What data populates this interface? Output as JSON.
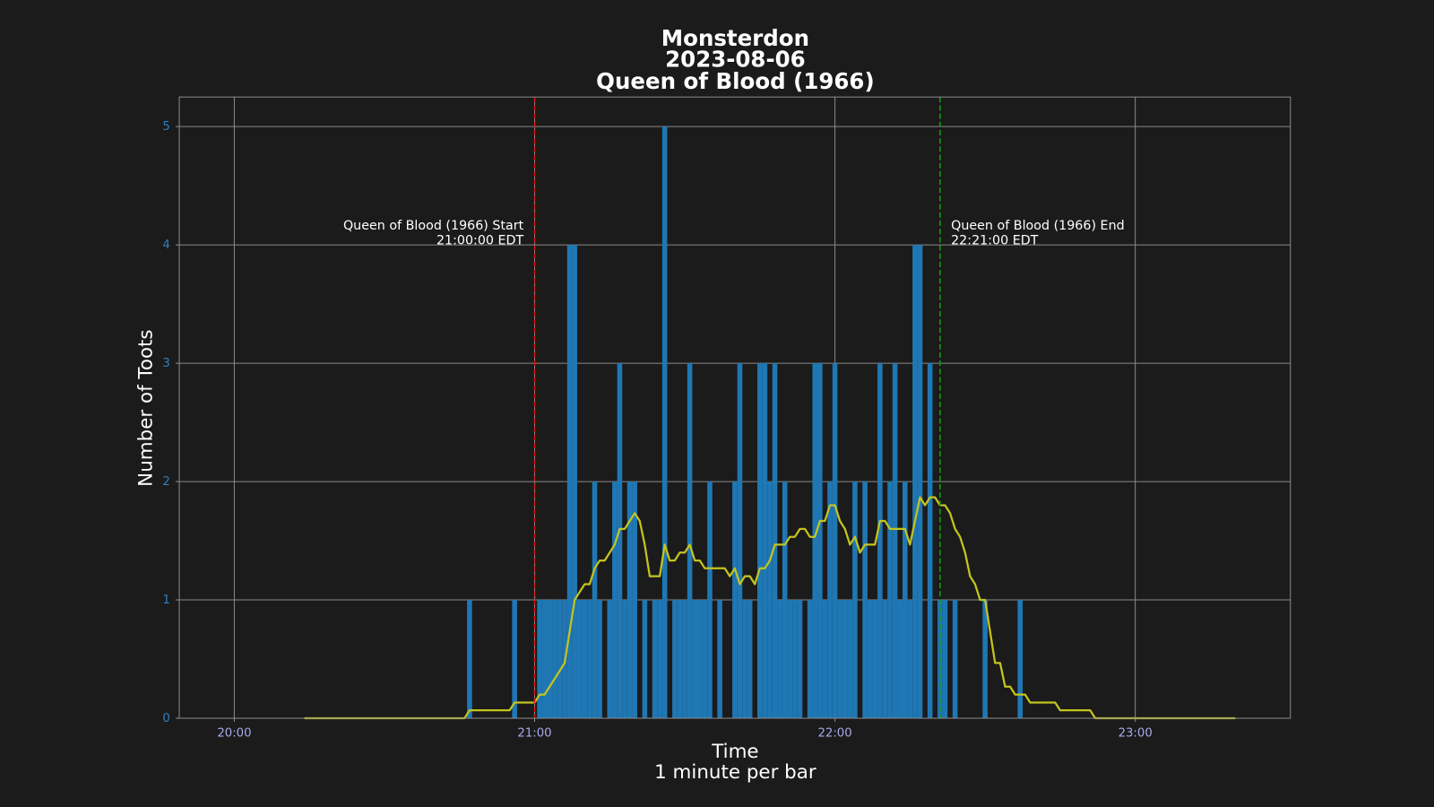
{
  "chart_data": {
    "type": "bar",
    "title": [
      "Monsterdon",
      "2023-08-06",
      "Queen of Blood (1966)"
    ],
    "xlabel": [
      "Time",
      "1 minute per bar"
    ],
    "ylabel": "Number of Toots",
    "background": "#1b1b1b",
    "grid": true,
    "grid_color": "#8a8a8a",
    "ytick_color": "#2f7fc0",
    "xtick_color": "#a8a8e8",
    "xlim": [
      "19:49",
      "23:31"
    ],
    "xticks": [
      "20:00",
      "21:00",
      "22:00",
      "23:00"
    ],
    "ylim": [
      0,
      5.25
    ],
    "yticks": [
      0,
      1,
      2,
      3,
      4,
      5
    ],
    "x": [
      "20:14",
      "20:15",
      "20:16",
      "20:17",
      "20:18",
      "20:19",
      "20:20",
      "20:21",
      "20:22",
      "20:23",
      "20:24",
      "20:25",
      "20:26",
      "20:27",
      "20:28",
      "20:29",
      "20:30",
      "20:31",
      "20:32",
      "20:33",
      "20:34",
      "20:35",
      "20:36",
      "20:37",
      "20:38",
      "20:39",
      "20:40",
      "20:41",
      "20:42",
      "20:43",
      "20:44",
      "20:45",
      "20:46",
      "20:47",
      "20:48",
      "20:49",
      "20:50",
      "20:51",
      "20:52",
      "20:53",
      "20:54",
      "20:55",
      "20:56",
      "20:57",
      "20:58",
      "20:59",
      "21:00",
      "21:01",
      "21:02",
      "21:03",
      "21:04",
      "21:05",
      "21:06",
      "21:07",
      "21:08",
      "21:09",
      "21:10",
      "21:11",
      "21:12",
      "21:13",
      "21:14",
      "21:15",
      "21:16",
      "21:17",
      "21:18",
      "21:19",
      "21:20",
      "21:21",
      "21:22",
      "21:23",
      "21:24",
      "21:25",
      "21:26",
      "21:27",
      "21:28",
      "21:29",
      "21:30",
      "21:31",
      "21:32",
      "21:33",
      "21:34",
      "21:35",
      "21:36",
      "21:37",
      "21:38",
      "21:39",
      "21:40",
      "21:41",
      "21:42",
      "21:43",
      "21:44",
      "21:45",
      "21:46",
      "21:47",
      "21:48",
      "21:49",
      "21:50",
      "21:51",
      "21:52",
      "21:53",
      "21:54",
      "21:55",
      "21:56",
      "21:57",
      "21:58",
      "21:59",
      "22:00",
      "22:01",
      "22:02",
      "22:03",
      "22:04",
      "22:05",
      "22:06",
      "22:07",
      "22:08",
      "22:09",
      "22:10",
      "22:11",
      "22:12",
      "22:13",
      "22:14",
      "22:15",
      "22:16",
      "22:17",
      "22:18",
      "22:19",
      "22:20",
      "22:21",
      "22:22",
      "22:23",
      "22:24",
      "22:25",
      "22:26",
      "22:27",
      "22:28",
      "22:29",
      "22:30",
      "22:31",
      "22:32",
      "22:33",
      "22:34",
      "22:35",
      "22:36",
      "22:37",
      "22:38",
      "22:39",
      "22:40",
      "22:41",
      "22:42",
      "22:43",
      "22:44",
      "22:45",
      "22:46",
      "22:47",
      "22:48",
      "22:49",
      "22:50",
      "22:51",
      "22:52",
      "22:53",
      "22:54",
      "22:55",
      "22:56",
      "22:57",
      "22:58",
      "22:59",
      "23:00",
      "23:01",
      "23:02",
      "23:03",
      "23:04",
      "23:05",
      "23:06",
      "23:07",
      "23:08",
      "23:09",
      "23:10",
      "23:11",
      "23:12",
      "23:13",
      "23:14",
      "23:15",
      "23:16",
      "23:17",
      "23:18",
      "23:19",
      "23:20"
    ],
    "series": [
      {
        "type": "bar",
        "color": "#1f77b4",
        "values": [
          0,
          0,
          0,
          0,
          0,
          0,
          0,
          0,
          0,
          0,
          0,
          0,
          0,
          0,
          0,
          0,
          0,
          0,
          0,
          0,
          0,
          0,
          0,
          0,
          0,
          0,
          0,
          0,
          0,
          0,
          0,
          0,
          0,
          1,
          0,
          0,
          0,
          0,
          0,
          0,
          0,
          0,
          1,
          0,
          0,
          0,
          0,
          1,
          1,
          1,
          1,
          1,
          1,
          4,
          4,
          1,
          1,
          1,
          2,
          1,
          0,
          1,
          2,
          3,
          1,
          2,
          2,
          0,
          1,
          0,
          1,
          1,
          5,
          0,
          1,
          1,
          1,
          3,
          1,
          1,
          1,
          2,
          0,
          1,
          0,
          0,
          2,
          3,
          1,
          1,
          0,
          3,
          3,
          2,
          3,
          1,
          2,
          1,
          1,
          1,
          0,
          1,
          3,
          3,
          1,
          2,
          3,
          1,
          1,
          1,
          2,
          0,
          2,
          1,
          1,
          3,
          1,
          2,
          3,
          1,
          2,
          1,
          4,
          4,
          0,
          3,
          0,
          1,
          1,
          0,
          1,
          0,
          0,
          0,
          0,
          0,
          1,
          0,
          0,
          0,
          0,
          0,
          0,
          1,
          0,
          0,
          0,
          0,
          0,
          0,
          0,
          0,
          0,
          0,
          0,
          0,
          0,
          0,
          0,
          0,
          0,
          0,
          0,
          0,
          0,
          0,
          0,
          0,
          0,
          0,
          0,
          0,
          0,
          0,
          0,
          0,
          0,
          0,
          0,
          0,
          0,
          0,
          0,
          0,
          0,
          0,
          0
        ]
      },
      {
        "type": "line",
        "color": "#c4c41e",
        "values": [
          0,
          0,
          0,
          0,
          0,
          0,
          0,
          0,
          0,
          0,
          0,
          0,
          0,
          0,
          0,
          0,
          0,
          0,
          0,
          0,
          0,
          0,
          0,
          0,
          0,
          0,
          0,
          0,
          0,
          0,
          0,
          0,
          0,
          0.067,
          0.067,
          0.067,
          0.067,
          0.067,
          0.067,
          0.067,
          0.067,
          0.067,
          0.133,
          0.133,
          0.133,
          0.133,
          0.133,
          0.2,
          0.2,
          0.267,
          0.333,
          0.4,
          0.467,
          0.733,
          1,
          1.067,
          1.133,
          1.133,
          1.267,
          1.333,
          1.333,
          1.4,
          1.467,
          1.6,
          1.6,
          1.667,
          1.733,
          1.667,
          1.467,
          1.2,
          1.2,
          1.2,
          1.467,
          1.333,
          1.333,
          1.4,
          1.4,
          1.467,
          1.333,
          1.333,
          1.267,
          1.267,
          1.267,
          1.267,
          1.267,
          1.2,
          1.267,
          1.133,
          1.2,
          1.2,
          1.133,
          1.267,
          1.267,
          1.333,
          1.467,
          1.467,
          1.467,
          1.533,
          1.533,
          1.6,
          1.6,
          1.533,
          1.533,
          1.667,
          1.667,
          1.8,
          1.8,
          1.667,
          1.6,
          1.467,
          1.533,
          1.4,
          1.467,
          1.467,
          1.467,
          1.667,
          1.667,
          1.6,
          1.6,
          1.6,
          1.6,
          1.467,
          1.667,
          1.867,
          1.8,
          1.867,
          1.867,
          1.8,
          1.8,
          1.733,
          1.6,
          1.533,
          1.4,
          1.2,
          1.133,
          1,
          1,
          0.733,
          0.467,
          0.467,
          0.267,
          0.267,
          0.2,
          0.2,
          0.2,
          0.133,
          0.133,
          0.133,
          0.133,
          0.133,
          0.133,
          0.067,
          0.067,
          0.067,
          0.067,
          0.067,
          0.067,
          0.067,
          0,
          0,
          0,
          0,
          0,
          0,
          0,
          0,
          0,
          0,
          0,
          0,
          0,
          0,
          0,
          0,
          0,
          0,
          0,
          0,
          0,
          0,
          0,
          0,
          0,
          0,
          0,
          0,
          0
        ]
      }
    ],
    "vlines": [
      {
        "x": "21:00",
        "color": "#e01010",
        "label": [
          "Queen of Blood (1966) Start",
          "21:00:00 EDT"
        ],
        "label_side": "left"
      },
      {
        "x": "22:21",
        "color": "#10a010",
        "label": [
          "Queen of Blood (1966) End",
          "22:21:00 EDT"
        ],
        "label_side": "right"
      }
    ]
  }
}
